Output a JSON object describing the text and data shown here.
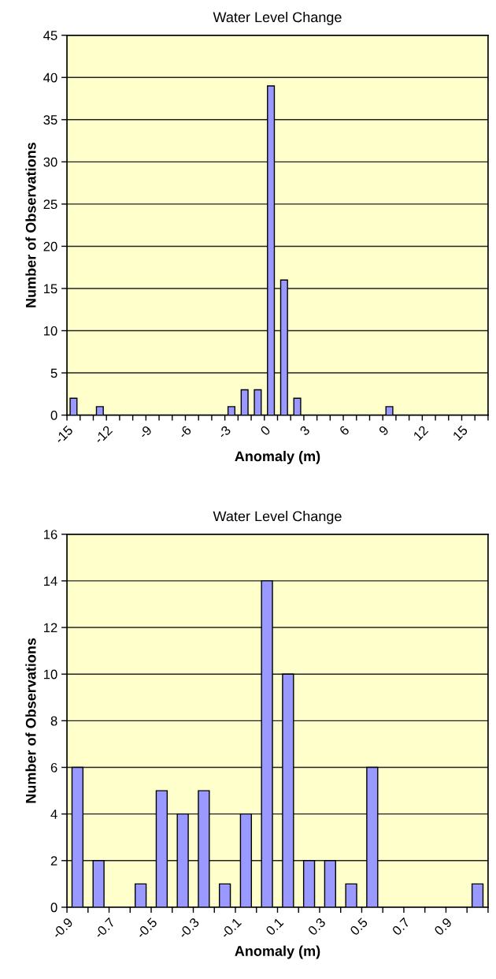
{
  "chart_data": [
    {
      "type": "histogram",
      "title": "Water Level Change",
      "xlabel": "Anomaly (m)",
      "ylabel": "Number of Observations",
      "color": "#9999ff",
      "grid": "y",
      "bins": [
        -15,
        -14,
        -13,
        -12,
        -11,
        -10,
        -9,
        -8,
        -7,
        -6,
        -5,
        -4,
        -3,
        -2,
        -1,
        0,
        1,
        2,
        3,
        4,
        5,
        6,
        7,
        8,
        9,
        10,
        11,
        12,
        13,
        14,
        15,
        16,
        17
      ],
      "values": [
        2,
        0,
        1,
        0,
        0,
        0,
        0,
        0,
        0,
        0,
        0,
        0,
        1,
        3,
        3,
        39,
        16,
        2,
        0,
        0,
        0,
        0,
        0,
        0,
        1,
        0,
        0,
        0,
        0,
        0,
        0,
        0
      ],
      "xlim": [
        -15,
        17
      ],
      "xticks": [
        -15,
        {
          "value": -14,
          "label": null
        },
        {
          "value": -13,
          "label": null
        },
        -12,
        {
          "value": -11,
          "label": null
        },
        {
          "value": -10,
          "label": null
        },
        -9,
        {
          "value": -8,
          "label": null
        },
        {
          "value": -7,
          "label": null
        },
        -6,
        {
          "value": -5,
          "label": null
        },
        {
          "value": -4,
          "label": null
        },
        -3,
        {
          "value": -2,
          "label": null
        },
        {
          "value": -1,
          "label": null
        },
        0,
        {
          "value": 1,
          "label": null
        },
        {
          "value": 2,
          "label": null
        },
        3,
        {
          "value": 4,
          "label": null
        },
        {
          "value": 5,
          "label": null
        },
        6,
        {
          "value": 7,
          "label": null
        },
        {
          "value": 8,
          "label": null
        },
        9,
        {
          "value": 10,
          "label": null
        },
        {
          "value": 11,
          "label": null
        },
        12,
        {
          "value": 13,
          "label": null
        },
        {
          "value": 14,
          "label": null
        },
        15,
        {
          "value": 16,
          "label": null
        },
        {
          "value": 17,
          "label": null
        }
      ],
      "ylim": [
        0,
        45
      ],
      "yticks": [
        0,
        5,
        10,
        15,
        20,
        25,
        30,
        35,
        40,
        45
      ]
    },
    {
      "type": "histogram",
      "title": "Water Level Change",
      "xlabel": "Anomaly (m)",
      "ylabel": "Number of Observations",
      "color": "#9999ff",
      "grid": "y",
      "bins": [
        -0.9,
        -0.8,
        -0.7,
        -0.6,
        -0.5,
        -0.4,
        -0.3,
        -0.2,
        -0.1,
        0,
        0.1,
        0.2,
        0.3,
        0.4,
        0.5,
        0.6,
        0.7,
        0.8,
        0.9,
        1.0,
        1.1
      ],
      "values": [
        6,
        2,
        0,
        1,
        5,
        4,
        5,
        1,
        4,
        14,
        10,
        2,
        2,
        1,
        6,
        0,
        0,
        0,
        0,
        1
      ],
      "xlim": [
        -0.9,
        1.1
      ],
      "xticks": [
        -0.9,
        {
          "value": -0.8,
          "label": null
        },
        -0.7,
        {
          "value": -0.6,
          "label": null
        },
        -0.5,
        {
          "value": -0.4,
          "label": null
        },
        -0.3,
        {
          "value": -0.2,
          "label": null
        },
        -0.1,
        {
          "value": 0,
          "label": null
        },
        0.1,
        {
          "value": 0.2,
          "label": null
        },
        0.3,
        {
          "value": 0.4,
          "label": null
        },
        0.5,
        {
          "value": 0.6,
          "label": null
        },
        0.7,
        {
          "value": 0.8,
          "label": null
        },
        0.9,
        {
          "value": 1.0,
          "label": null
        },
        {
          "value": 1.1,
          "label": null
        }
      ],
      "ylim": [
        0,
        16
      ],
      "yticks": [
        0,
        2,
        4,
        6,
        8,
        10,
        12,
        14,
        16
      ]
    }
  ]
}
